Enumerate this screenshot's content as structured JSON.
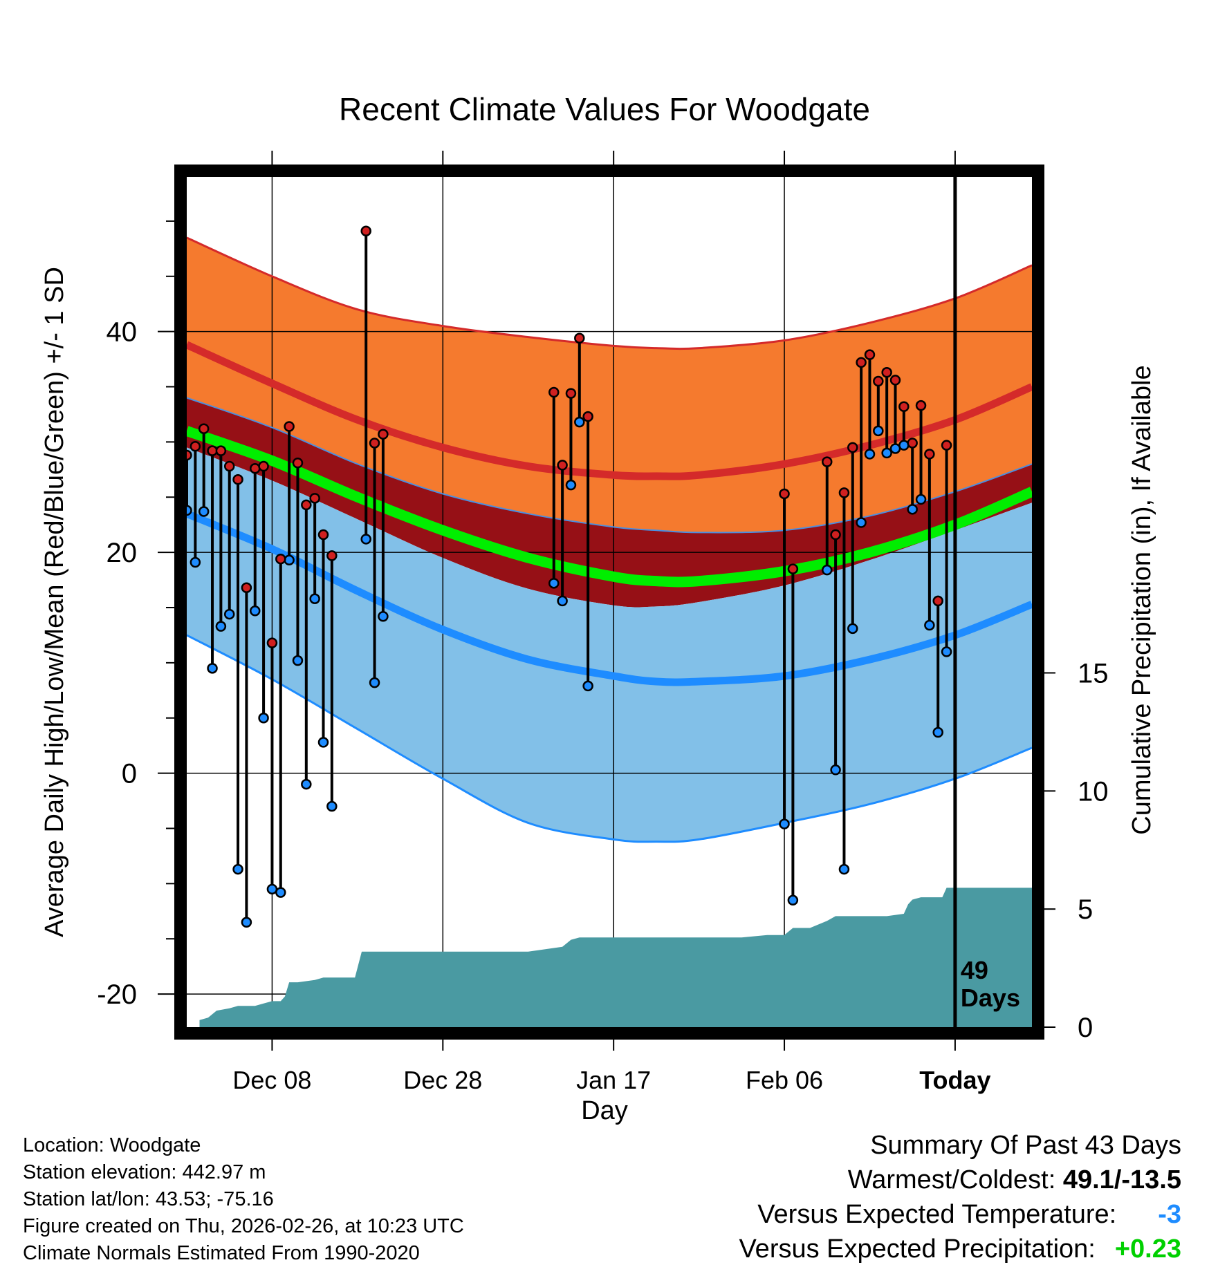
{
  "chart_data": {
    "type": "line",
    "title": "Recent Climate Values For Woodgate",
    "xlabel": "Day",
    "ylabel": "Average Daily High/Low/Mean (Red/Blue/Green) +/- 1 SD",
    "y2label": "Cumulative Precipitation (in), If Available",
    "xlim": [
      -10,
      89
    ],
    "ylim": [
      -23,
      54
    ],
    "y2lim": [
      0,
      36
    ],
    "x_ticks": [
      {
        "x": 0,
        "label": "Dec 08"
      },
      {
        "x": 20,
        "label": "Dec 28"
      },
      {
        "x": 40,
        "label": "Jan 17"
      },
      {
        "x": 60,
        "label": "Feb 06"
      },
      {
        "x": 80,
        "label": "Today"
      }
    ],
    "y_ticks": [
      {
        "y": -20,
        "label": "-20"
      },
      {
        "y": 0,
        "label": "0"
      },
      {
        "y": 20,
        "label": "20"
      },
      {
        "y": 40,
        "label": "40"
      }
    ],
    "y2_ticks": [
      {
        "y": 0,
        "label": "0"
      },
      {
        "y": 5,
        "label": "5"
      },
      {
        "y": 10,
        "label": "10"
      },
      {
        "y": 15,
        "label": "15"
      }
    ],
    "today_label": "49\nDays",
    "today_label_lines": [
      "49",
      "Days"
    ],
    "normals": {
      "x": [
        -10,
        0,
        10,
        20,
        30,
        40,
        45,
        50,
        60,
        70,
        80,
        89
      ],
      "high_sd_upper": [
        48.5,
        45,
        42,
        40.5,
        39.5,
        38.7,
        38.5,
        38.5,
        39.2,
        40.8,
        43,
        46
      ],
      "high_mean": [
        38.8,
        35.3,
        32,
        29.5,
        27.8,
        27,
        26.9,
        27,
        28,
        29.7,
        32,
        35
      ],
      "high_sd_lower": [
        34,
        31.3,
        28,
        25.3,
        23.5,
        22.3,
        22,
        21.8,
        22,
        23.3,
        25.5,
        28
      ],
      "mean_avg": [
        31,
        28.3,
        25,
        22,
        19.5,
        17.8,
        17.4,
        17.4,
        18.3,
        20,
        22.5,
        25.5
      ],
      "mean_sd_lower": [
        29.5,
        26.5,
        23,
        19.5,
        16.7,
        15.2,
        15.1,
        15.5,
        17,
        19.3,
        22,
        24.5
      ],
      "low_mean": [
        23.5,
        20.3,
        16.5,
        13,
        10.3,
        8.8,
        8.3,
        8.3,
        8.8,
        10.3,
        12.5,
        15.3
      ],
      "low_sd_lower": [
        12.5,
        8.5,
        4,
        -0.5,
        -4.5,
        -6,
        -6.2,
        -6,
        -4.5,
        -2.8,
        -0.5,
        2.3
      ]
    },
    "series": [
      {
        "name": "Daily High",
        "color": "#d02020",
        "points": [
          [
            -10,
            28.8
          ],
          [
            -9,
            29.6
          ],
          [
            -8,
            31.2
          ],
          [
            -7,
            29.2
          ],
          [
            -6,
            29.2
          ],
          [
            -5,
            27.8
          ],
          [
            -4,
            26.6
          ],
          [
            -3,
            16.8
          ],
          [
            -2,
            27.6
          ],
          [
            -1,
            27.8
          ],
          [
            0,
            11.8
          ],
          [
            1,
            19.4
          ],
          [
            2,
            31.4
          ],
          [
            3,
            28.1
          ],
          [
            4,
            24.3
          ],
          [
            5,
            24.9
          ],
          [
            6,
            21.6
          ],
          [
            7,
            19.7
          ],
          [
            11,
            49.1
          ],
          [
            12,
            29.9
          ],
          [
            13,
            30.7
          ],
          [
            33,
            34.5
          ],
          [
            34,
            27.9
          ],
          [
            35,
            34.4
          ],
          [
            36,
            39.4
          ],
          [
            37,
            32.3
          ],
          [
            60,
            25.3
          ],
          [
            61,
            18.5
          ],
          [
            65,
            28.2
          ],
          [
            66,
            21.6
          ],
          [
            67,
            25.4
          ],
          [
            68,
            29.5
          ],
          [
            69,
            37.2
          ],
          [
            70,
            37.9
          ],
          [
            71,
            35.5
          ],
          [
            72,
            36.3
          ],
          [
            73,
            35.6
          ],
          [
            74,
            33.2
          ],
          [
            75,
            29.9
          ],
          [
            76,
            33.3
          ],
          [
            77,
            28.9
          ],
          [
            78,
            15.6
          ],
          [
            79,
            29.7
          ]
        ]
      },
      {
        "name": "Daily Low",
        "color": "#1e8cff",
        "points": [
          [
            -10,
            23.8
          ],
          [
            -9,
            19.1
          ],
          [
            -8,
            23.7
          ],
          [
            -7,
            9.5
          ],
          [
            -6,
            13.3
          ],
          [
            -5,
            14.4
          ],
          [
            -4,
            -8.7
          ],
          [
            -3,
            -13.5
          ],
          [
            -2,
            14.7
          ],
          [
            -1,
            5.0
          ],
          [
            0,
            -10.5
          ],
          [
            1,
            -10.8
          ],
          [
            2,
            19.3
          ],
          [
            3,
            10.2
          ],
          [
            4,
            -1.0
          ],
          [
            5,
            15.8
          ],
          [
            6,
            2.8
          ],
          [
            7,
            -3.0
          ],
          [
            11,
            21.2
          ],
          [
            12,
            8.2
          ],
          [
            13,
            14.2
          ],
          [
            33,
            17.2
          ],
          [
            34,
            15.6
          ],
          [
            35,
            26.1
          ],
          [
            36,
            31.8
          ],
          [
            37,
            7.9
          ],
          [
            60,
            -4.6
          ],
          [
            61,
            -11.5
          ],
          [
            65,
            18.4
          ],
          [
            66,
            0.3
          ],
          [
            67,
            -8.7
          ],
          [
            68,
            13.1
          ],
          [
            69,
            22.7
          ],
          [
            70,
            28.9
          ],
          [
            71,
            31.0
          ],
          [
            72,
            29.0
          ],
          [
            73,
            29.4
          ],
          [
            74,
            29.7
          ],
          [
            75,
            23.9
          ],
          [
            76,
            24.8
          ],
          [
            77,
            13.4
          ],
          [
            78,
            3.7
          ],
          [
            79,
            11.0
          ]
        ]
      }
    ],
    "precipitation": {
      "x": [
        -8.5,
        -7.5,
        -6.5,
        -5,
        -4,
        -3,
        -2,
        -1,
        0,
        1,
        1.5,
        2,
        3,
        5,
        6,
        8,
        9.7,
        10.5,
        11,
        13,
        15,
        20,
        25,
        30,
        32,
        34,
        35,
        36,
        40,
        45,
        50,
        55,
        58,
        59,
        60,
        61,
        62,
        63,
        65,
        66,
        67,
        68,
        70,
        72,
        74,
        74.5,
        75,
        76,
        77,
        78,
        78.5,
        79,
        80,
        89
      ],
      "y": [
        0.3,
        0.4,
        0.7,
        0.8,
        0.9,
        0.9,
        0.9,
        1.0,
        1.1,
        1.1,
        1.3,
        1.9,
        1.9,
        2.0,
        2.1,
        2.1,
        2.1,
        3.2,
        3.2,
        3.2,
        3.2,
        3.2,
        3.2,
        3.2,
        3.3,
        3.4,
        3.7,
        3.8,
        3.8,
        3.8,
        3.8,
        3.8,
        3.9,
        3.9,
        3.9,
        4.2,
        4.2,
        4.2,
        4.5,
        4.7,
        4.7,
        4.7,
        4.7,
        4.7,
        4.8,
        5.2,
        5.4,
        5.5,
        5.5,
        5.5,
        5.5,
        5.9,
        5.9,
        5.9
      ]
    }
  },
  "footer": {
    "location": "Location: Woodgate",
    "elevation": "Station elevation: 442.97 m",
    "latlon": "Station lat/lon: 43.53; -75.16",
    "created": "Figure created on Thu, 2026-02-26, at 10:23 UTC",
    "normals": "Climate Normals Estimated From 1990-2020"
  },
  "summary": {
    "heading": "Summary Of Past 43 Days",
    "warmest_label": "Warmest/Coldest: ",
    "warmest_value": "49.1/-13.5",
    "temp_label": "Versus Expected Temperature:",
    "temp_value": "-3",
    "precip_label": "Versus Expected Precipitation:",
    "precip_value": "+0.23"
  }
}
